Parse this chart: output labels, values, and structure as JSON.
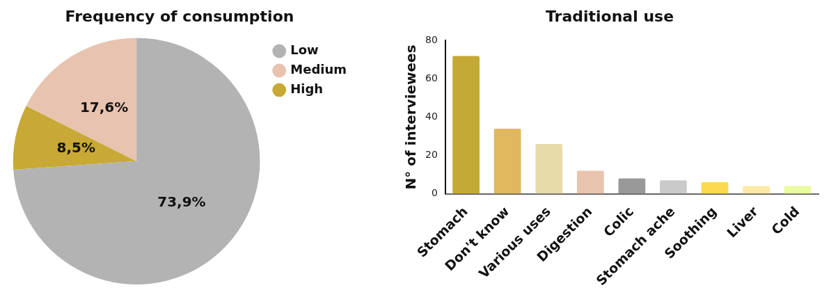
{
  "chart_data": [
    {
      "type": "pie",
      "title": "Frequency of consumption",
      "categories": [
        "Low",
        "Medium",
        "High"
      ],
      "values": [
        73.9,
        17.6,
        8.5
      ],
      "colors": [
        "#b3b3b3",
        "#e8c4b0",
        "#c8a935"
      ],
      "value_labels": [
        "73,9%",
        "17,6%",
        "8,5%"
      ],
      "legend": "top right"
    },
    {
      "type": "bar",
      "title": "Traditional use",
      "ylabel": "N° of interviewees",
      "categories": [
        "Stomach",
        "Don't know",
        "Various uses",
        "Digestion",
        "Colic",
        "Stomach ache",
        "Soothing",
        "Liver",
        "Cold"
      ],
      "values": [
        72,
        34,
        26,
        12,
        8,
        7,
        6,
        4,
        4
      ],
      "colors": [
        "#c5a935",
        "#e0b85e",
        "#e8dbaa",
        "#e8c4ae",
        "#999999",
        "#cacaca",
        "#fdd94f",
        "#fde9a6",
        "#e9fca0"
      ],
      "ylim": [
        0,
        80
      ],
      "yticks": [
        0,
        20,
        40,
        60,
        80
      ],
      "grid": false,
      "legend": false
    }
  ]
}
